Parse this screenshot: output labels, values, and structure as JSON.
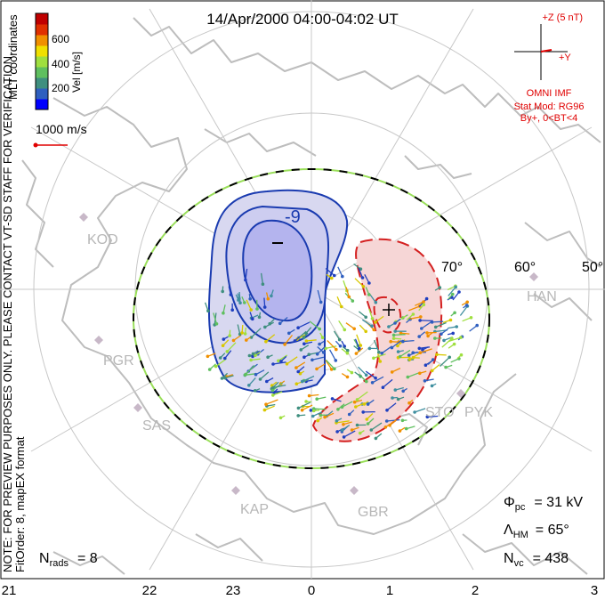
{
  "title": "14/Apr/2000 04:00-04:02 UT",
  "side_note": {
    "line1": "NOTE: FOR PREVIEW PURPOSES ONLY. PLEASE CONTACT VT-SD STAFF FOR VERIFICATION.",
    "line2": "FitOrder: 8, mapEX format"
  },
  "coords_label": "MLT coordinates",
  "colorbar": {
    "label": "Vel [m/s]",
    "ticks": [
      "600",
      "400",
      "200"
    ],
    "colors": [
      "#0000ff",
      "#2f5fbf",
      "#3f8f7f",
      "#5fbf5f",
      "#9fdf3f",
      "#f0e000",
      "#f09000",
      "#e03000",
      "#c00000"
    ]
  },
  "vector_scale": {
    "label": "1000 m/s",
    "color": "#e00000"
  },
  "imf": {
    "z_label": "+Z (5 nT)",
    "y_label": "+Y",
    "source": "OMNI IMF",
    "model": "Stat Mod: RG96",
    "condition": "By+, 0<BT<4"
  },
  "lat_labels": [
    "70°",
    "60°",
    "50°"
  ],
  "stations": [
    {
      "name": "KOD"
    },
    {
      "name": "PGR"
    },
    {
      "name": "SAS"
    },
    {
      "name": "KAP"
    },
    {
      "name": "GBR"
    },
    {
      "name": "STO"
    },
    {
      "name": "PYK"
    },
    {
      "name": "HAN"
    }
  ],
  "contour_labels": {
    "min": "-9"
  },
  "stats": {
    "phi_symbol": "Φ",
    "phi_sub": "pc",
    "phi_value": "= 31 kV",
    "lambda_symbol": "Λ",
    "lambda_sub": "HM",
    "lambda_value": "= 65°",
    "nvc_symbol": "N",
    "nvc_sub": "vc",
    "nvc_value": "= 438",
    "nrads_symbol": "N",
    "nrads_sub": "rads",
    "nrads_value": "= 8"
  },
  "mlt_ticks": [
    "21",
    "22",
    "23",
    "0",
    "1",
    "2",
    "3"
  ],
  "colors": {
    "dusk_cell_fill": "#d8d8f0",
    "dusk_cell_core": "#b4b4ee",
    "dusk_contour": "#1a3bb0",
    "dawn_cell_fill": "#f6d6d6",
    "dawn_contour": "#d42020",
    "hmb_dash_green": "#9adf5a",
    "grid": "#c8c8c8",
    "land": "#bdbdbd"
  }
}
